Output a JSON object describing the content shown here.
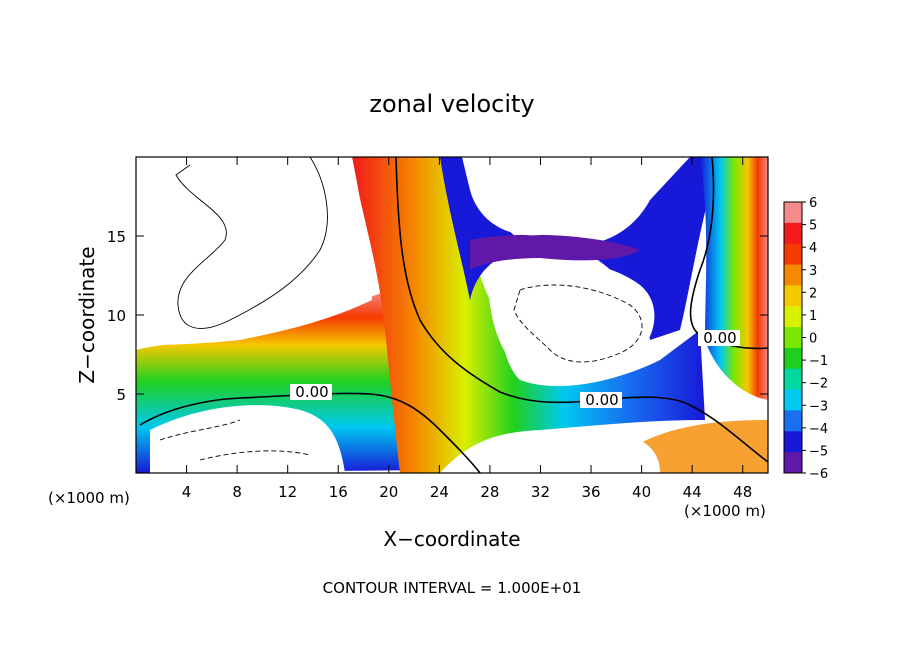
{
  "chart_data": {
    "type": "heatmap",
    "title": "zonal velocity",
    "xlabel": "X−coordinate",
    "ylabel": "Z−coordinate",
    "x_unit_left": "(×1000 m)",
    "x_unit_right": "(×1000 m)",
    "xlim": [
      0,
      50
    ],
    "ylim": [
      0,
      20
    ],
    "x_ticks": [
      4,
      8,
      12,
      16,
      20,
      24,
      28,
      32,
      36,
      40,
      44,
      48
    ],
    "y_ticks": [
      5,
      10,
      15
    ],
    "colorbar": {
      "levels": [
        "6",
        "5",
        "4",
        "3",
        "2",
        "1",
        "0",
        "−1",
        "−2",
        "−3",
        "−4",
        "−5",
        "−6"
      ],
      "values": [
        6,
        5,
        4,
        3,
        2,
        1,
        0,
        -1,
        -2,
        -3,
        -4,
        -5,
        -6
      ],
      "colors": [
        "#f58a8a",
        "#f21a1a",
        "#f53a00",
        "#f58a00",
        "#f5c800",
        "#d8f000",
        "#7ae800",
        "#20d020",
        "#00d8a0",
        "#00c8f0",
        "#1870f0",
        "#1818d8",
        "#6018a8"
      ]
    },
    "contour_labels": [
      "0.00",
      "0.00",
      "0.00"
    ],
    "contour_interval": "CONTOUR INTERVAL = 1.000E+01"
  }
}
